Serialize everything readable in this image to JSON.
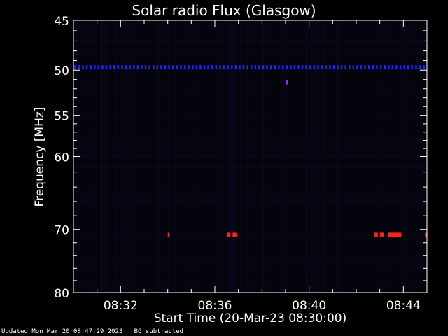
{
  "chart_data": {
    "type": "heatmap",
    "title": "Solar radio Flux (Glasgow)",
    "xlabel": "Start Time (20-Mar-23 08:30:00)",
    "ylabel": "Frequency [MHz]",
    "x_range_minutes": [
      8.5,
      8.75
    ],
    "x_tick_labels": [
      "08:32",
      "08:36",
      "08:40",
      "08:44"
    ],
    "x_ticks_hours": [
      8.5333,
      8.6,
      8.6667,
      8.7333
    ],
    "ylim": [
      45,
      80
    ],
    "y_scale": "log",
    "y_ticks": [
      45,
      50,
      55,
      60,
      70,
      80
    ],
    "y_tick_labels": [
      "45",
      "50",
      "55",
      "60",
      "70",
      "80"
    ],
    "colors": {
      "background": "#000000",
      "frame": "#ffffff",
      "interference": "#2222ff",
      "burst": "#ff2020"
    },
    "features": [
      {
        "name": "persistent interference line",
        "freq_mhz": 49.7,
        "start": "08:30:00",
        "end": "08:45:00"
      },
      {
        "name": "dot",
        "freq_mhz": 51.3,
        "start": "08:39:00",
        "end": "08:39:10"
      },
      {
        "name": "burst",
        "freq_mhz": 70.8,
        "start": "08:34:00",
        "end": "08:34:05"
      },
      {
        "name": "burst",
        "freq_mhz": 70.8,
        "start": "08:36:30",
        "end": "08:36:40"
      },
      {
        "name": "burst",
        "freq_mhz": 70.8,
        "start": "08:36:45",
        "end": "08:36:55"
      },
      {
        "name": "burst",
        "freq_mhz": 70.8,
        "start": "08:42:45",
        "end": "08:42:55"
      },
      {
        "name": "burst",
        "freq_mhz": 70.8,
        "start": "08:43:00",
        "end": "08:43:10"
      },
      {
        "name": "burst",
        "freq_mhz": 70.8,
        "start": "08:43:20",
        "end": "08:43:55"
      },
      {
        "name": "burst",
        "freq_mhz": 70.8,
        "start": "08:44:55",
        "end": "08:45:00"
      }
    ]
  },
  "footer": {
    "updated": "Updated Mon Mar 20 08:47:29 2023",
    "bg": "BG subtracted"
  }
}
